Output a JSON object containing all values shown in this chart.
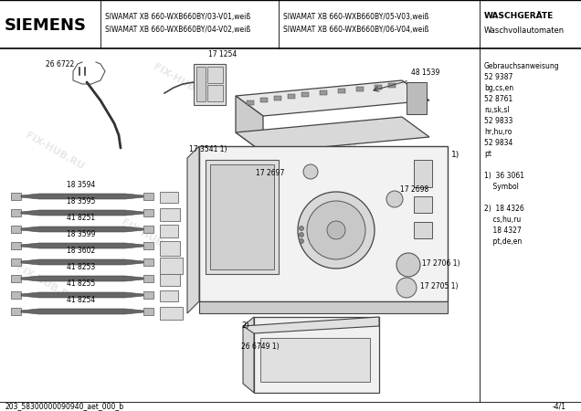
{
  "title_brand": "SIEMENS",
  "header_model1": "SIWAMAT XB 660-WXB660BY/03-V01,weiß",
  "header_model2": "SIWAMAT XB 660-WXB660BY/04-V02,weiß",
  "header_model3": "SIWAMAT XB 660-WXB660BY/05-V03,weiß",
  "header_model4": "SIWAMAT XB 660-WXB660BY/06-V04,weiß",
  "header_right1": "WASCHGERÄTE",
  "header_right2": "Waschvollautomaten",
  "sidebar_text": [
    "Gebrauchsanweisung",
    "52 9387",
    "bg,cs,en",
    "52 8761",
    "ru,sk,sl",
    "52 9833",
    "hr,hu,ro",
    "52 9834",
    "pt",
    "",
    "1)  36 3061",
    "    Symbol",
    "",
    "2)  18 4326",
    "    cs,hu,ru",
    "    18 4327",
    "    pt,de,en"
  ],
  "footer_left": "203_58300000090940_aet_000_b",
  "footer_right": "-4/1",
  "watermark": "FIX-HUB.RU",
  "bg_color": "#ffffff",
  "cable_labels": [
    "18 3594",
    "18 3595",
    "41 8251",
    "18 3599",
    "18 3602",
    "41 8253",
    "41 8255",
    "41 8254"
  ],
  "cable_y_positions": [
    215,
    233,
    251,
    269,
    287,
    305,
    323,
    341
  ],
  "part_labels": {
    "plug": "26 6722",
    "box": "17 1254",
    "pcb": "48 1539",
    "knob1": "17 2698",
    "knob2": "17 2697",
    "drawer_label": "17 3541 1)",
    "knob3": "17 2706 1)",
    "knob4": "17 2705 1)",
    "basin": "2)",
    "basin_label": "26 6749 1)"
  }
}
